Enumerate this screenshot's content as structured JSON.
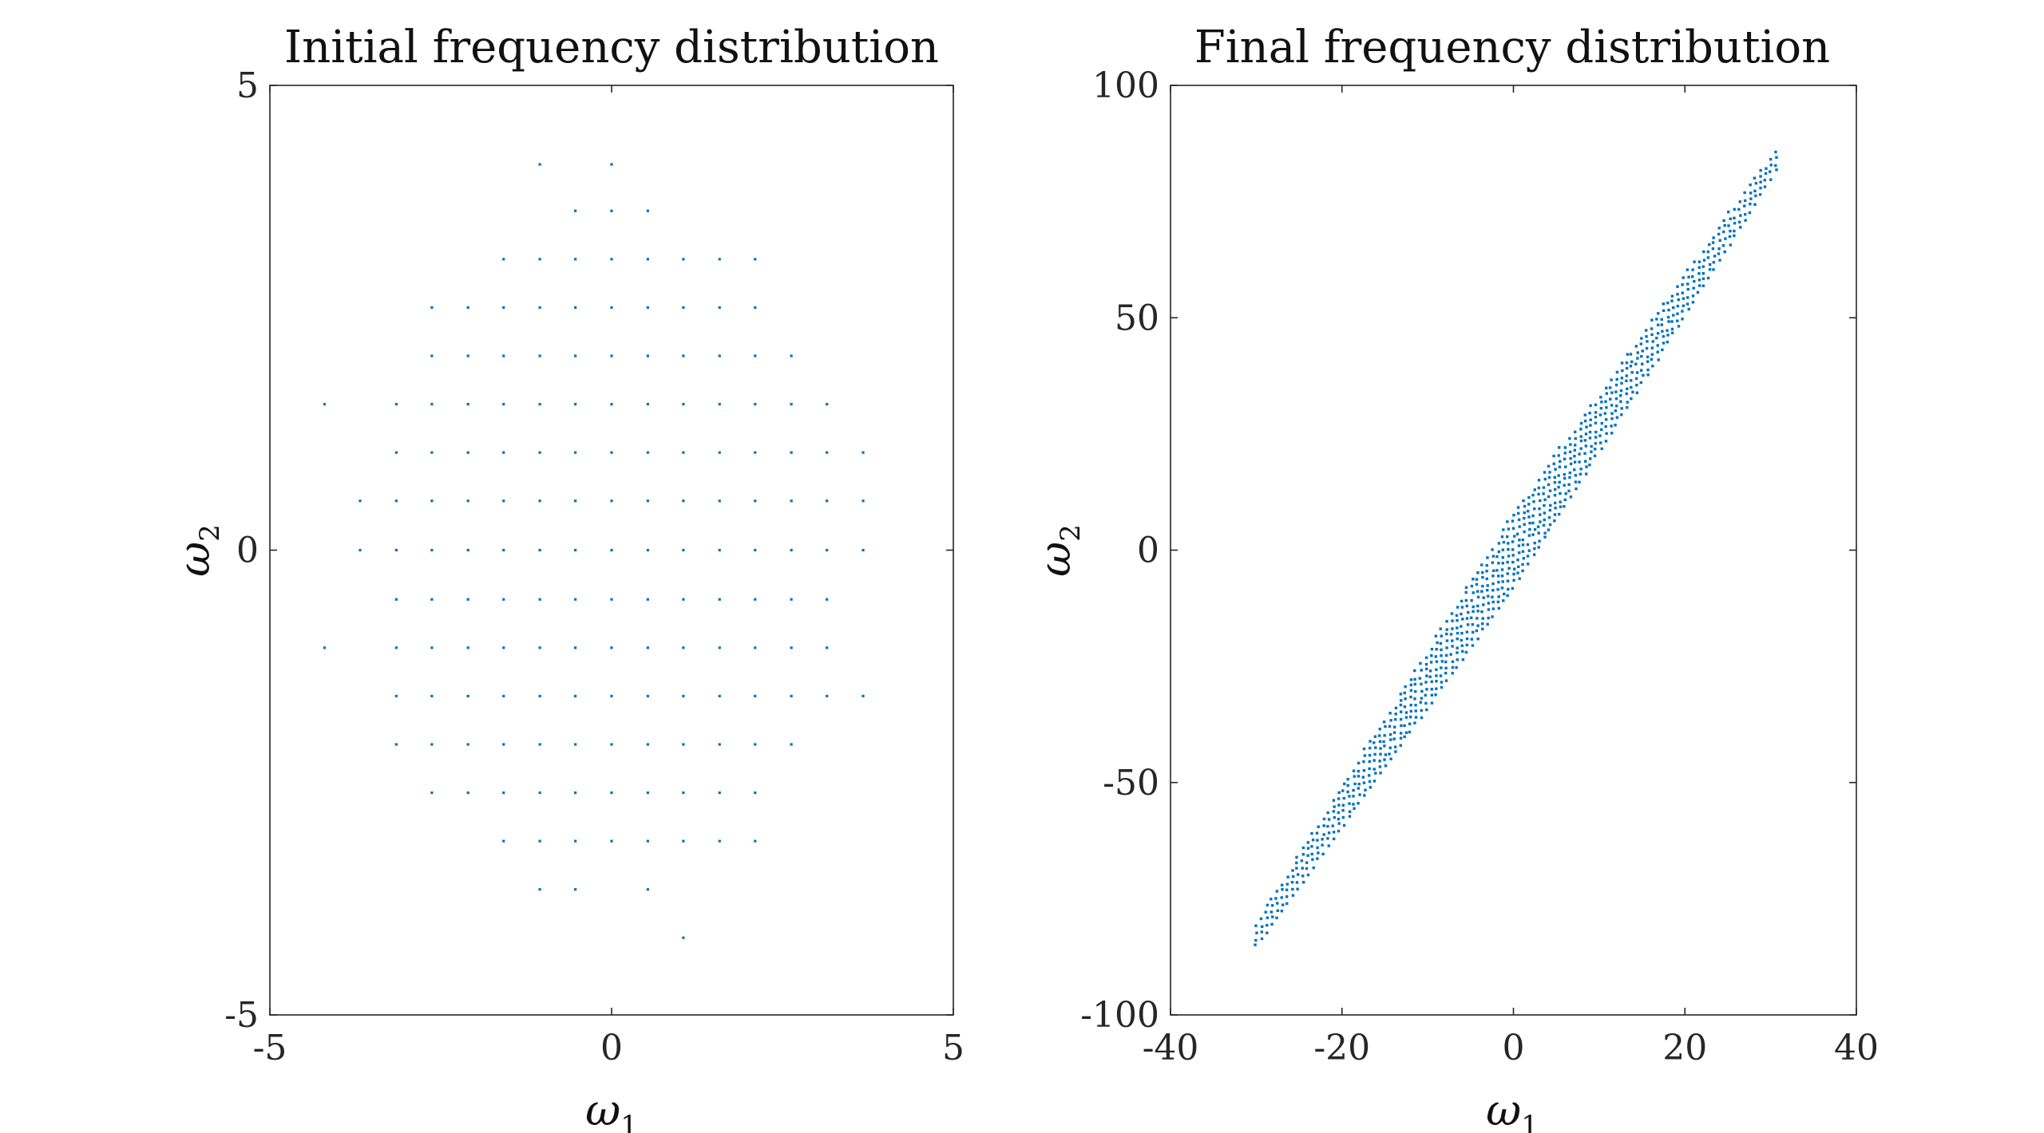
{
  "chart_data": [
    {
      "type": "scatter",
      "title": "Initial frequency distribution",
      "xlabel": "ω1",
      "xlabel_base": "ω",
      "xlabel_sub": "1",
      "ylabel": "ω2",
      "ylabel_base": "ω",
      "ylabel_sub": "2",
      "xlim": [
        -5,
        5
      ],
      "ylim": [
        -5,
        5
      ],
      "xticks": [
        -5,
        0,
        5
      ],
      "yticks": [
        -5,
        0,
        5
      ],
      "xtick_labels": [
        "-5",
        "0",
        "5"
      ],
      "ytick_labels": [
        "-5",
        "0",
        "5"
      ],
      "grid": false,
      "marker_color": "#0072bd",
      "series": [
        {
          "points": [
            [
              -1.05,
              4.15
            ],
            [
              0,
              4.15
            ],
            [
              -0.53,
              3.65
            ],
            [
              0,
              3.65
            ],
            [
              0.53,
              3.65
            ],
            [
              -1.58,
              3.13
            ],
            [
              -1.05,
              3.13
            ],
            [
              -0.53,
              3.13
            ],
            [
              0,
              3.13
            ],
            [
              0.53,
              3.13
            ],
            [
              1.05,
              3.13
            ],
            [
              1.58,
              3.13
            ],
            [
              2.1,
              3.13
            ],
            [
              -2.63,
              2.61
            ],
            [
              -2.1,
              2.61
            ],
            [
              -1.58,
              2.61
            ],
            [
              -1.05,
              2.61
            ],
            [
              -0.53,
              2.61
            ],
            [
              0,
              2.61
            ],
            [
              0.53,
              2.61
            ],
            [
              1.05,
              2.61
            ],
            [
              1.58,
              2.61
            ],
            [
              2.1,
              2.61
            ],
            [
              -2.63,
              2.09
            ],
            [
              -2.1,
              2.09
            ],
            [
              -1.58,
              2.09
            ],
            [
              -1.05,
              2.09
            ],
            [
              -0.53,
              2.09
            ],
            [
              0,
              2.09
            ],
            [
              0.53,
              2.09
            ],
            [
              1.05,
              2.09
            ],
            [
              1.58,
              2.09
            ],
            [
              2.1,
              2.09
            ],
            [
              2.63,
              2.09
            ],
            [
              -4.2,
              1.57
            ],
            [
              -3.15,
              1.57
            ],
            [
              -2.63,
              1.57
            ],
            [
              -2.1,
              1.57
            ],
            [
              -1.58,
              1.57
            ],
            [
              -1.05,
              1.57
            ],
            [
              -0.53,
              1.57
            ],
            [
              0,
              1.57
            ],
            [
              0.53,
              1.57
            ],
            [
              1.05,
              1.57
            ],
            [
              1.58,
              1.57
            ],
            [
              2.1,
              1.57
            ],
            [
              2.63,
              1.57
            ],
            [
              3.15,
              1.57
            ],
            [
              -3.15,
              1.05
            ],
            [
              -2.63,
              1.05
            ],
            [
              -2.1,
              1.05
            ],
            [
              -1.58,
              1.05
            ],
            [
              -1.05,
              1.05
            ],
            [
              -0.53,
              1.05
            ],
            [
              0,
              1.05
            ],
            [
              0.53,
              1.05
            ],
            [
              1.05,
              1.05
            ],
            [
              1.58,
              1.05
            ],
            [
              2.1,
              1.05
            ],
            [
              2.63,
              1.05
            ],
            [
              3.15,
              1.05
            ],
            [
              3.68,
              1.05
            ],
            [
              -3.68,
              0.53
            ],
            [
              -3.15,
              0.53
            ],
            [
              -2.63,
              0.53
            ],
            [
              -2.1,
              0.53
            ],
            [
              -1.58,
              0.53
            ],
            [
              -1.05,
              0.53
            ],
            [
              -0.53,
              0.53
            ],
            [
              0,
              0.53
            ],
            [
              0.53,
              0.53
            ],
            [
              1.05,
              0.53
            ],
            [
              1.58,
              0.53
            ],
            [
              2.1,
              0.53
            ],
            [
              2.63,
              0.53
            ],
            [
              3.15,
              0.53
            ],
            [
              3.68,
              0.53
            ],
            [
              -3.68,
              0
            ],
            [
              -3.15,
              0
            ],
            [
              -2.63,
              0
            ],
            [
              -2.1,
              0
            ],
            [
              -1.58,
              0
            ],
            [
              -1.05,
              0
            ],
            [
              -0.53,
              0
            ],
            [
              0,
              0
            ],
            [
              0.53,
              0
            ],
            [
              1.05,
              0
            ],
            [
              1.58,
              0
            ],
            [
              2.1,
              0
            ],
            [
              2.63,
              0
            ],
            [
              3.15,
              0
            ],
            [
              3.68,
              0
            ],
            [
              -3.15,
              -0.53
            ],
            [
              -2.63,
              -0.53
            ],
            [
              -2.1,
              -0.53
            ],
            [
              -1.58,
              -0.53
            ],
            [
              -1.05,
              -0.53
            ],
            [
              -0.53,
              -0.53
            ],
            [
              0,
              -0.53
            ],
            [
              0.53,
              -0.53
            ],
            [
              1.05,
              -0.53
            ],
            [
              1.58,
              -0.53
            ],
            [
              2.1,
              -0.53
            ],
            [
              2.63,
              -0.53
            ],
            [
              3.15,
              -0.53
            ],
            [
              -4.2,
              -1.05
            ],
            [
              -3.15,
              -1.05
            ],
            [
              -2.63,
              -1.05
            ],
            [
              -2.1,
              -1.05
            ],
            [
              -1.58,
              -1.05
            ],
            [
              -1.05,
              -1.05
            ],
            [
              -0.53,
              -1.05
            ],
            [
              0,
              -1.05
            ],
            [
              0.53,
              -1.05
            ],
            [
              1.05,
              -1.05
            ],
            [
              1.58,
              -1.05
            ],
            [
              2.1,
              -1.05
            ],
            [
              2.63,
              -1.05
            ],
            [
              3.15,
              -1.05
            ],
            [
              -3.15,
              -1.57
            ],
            [
              -2.63,
              -1.57
            ],
            [
              -2.1,
              -1.57
            ],
            [
              -1.58,
              -1.57
            ],
            [
              -1.05,
              -1.57
            ],
            [
              -0.53,
              -1.57
            ],
            [
              0,
              -1.57
            ],
            [
              0.53,
              -1.57
            ],
            [
              1.05,
              -1.57
            ],
            [
              1.58,
              -1.57
            ],
            [
              2.1,
              -1.57
            ],
            [
              2.63,
              -1.57
            ],
            [
              3.15,
              -1.57
            ],
            [
              3.68,
              -1.57
            ],
            [
              -3.15,
              -2.09
            ],
            [
              -2.63,
              -2.09
            ],
            [
              -2.1,
              -2.09
            ],
            [
              -1.58,
              -2.09
            ],
            [
              -1.05,
              -2.09
            ],
            [
              -0.53,
              -2.09
            ],
            [
              0,
              -2.09
            ],
            [
              0.53,
              -2.09
            ],
            [
              1.05,
              -2.09
            ],
            [
              1.58,
              -2.09
            ],
            [
              2.1,
              -2.09
            ],
            [
              2.63,
              -2.09
            ],
            [
              -2.63,
              -2.61
            ],
            [
              -2.1,
              -2.61
            ],
            [
              -1.58,
              -2.61
            ],
            [
              -1.05,
              -2.61
            ],
            [
              -0.53,
              -2.61
            ],
            [
              0,
              -2.61
            ],
            [
              0.53,
              -2.61
            ],
            [
              1.05,
              -2.61
            ],
            [
              1.58,
              -2.61
            ],
            [
              2.1,
              -2.61
            ],
            [
              -1.58,
              -3.13
            ],
            [
              -1.05,
              -3.13
            ],
            [
              -0.53,
              -3.13
            ],
            [
              0,
              -3.13
            ],
            [
              0.53,
              -3.13
            ],
            [
              1.05,
              -3.13
            ],
            [
              1.58,
              -3.13
            ],
            [
              2.1,
              -3.13
            ],
            [
              -1.05,
              -3.65
            ],
            [
              -0.53,
              -3.65
            ],
            [
              0.53,
              -3.65
            ],
            [
              1.05,
              -4.17
            ]
          ]
        }
      ]
    },
    {
      "type": "scatter",
      "title": "Final frequency distribution",
      "xlabel": "ω1",
      "xlabel_base": "ω",
      "xlabel_sub": "1",
      "ylabel": "ω2",
      "ylabel_base": "ω",
      "ylabel_sub": "2",
      "xlim": [
        -40,
        40
      ],
      "ylim": [
        -100,
        100
      ],
      "xticks": [
        -40,
        -20,
        0,
        20,
        40
      ],
      "yticks": [
        -100,
        -50,
        0,
        50,
        100
      ],
      "xtick_labels": [
        "-40",
        "-20",
        "0",
        "20",
        "40"
      ],
      "ytick_labels": [
        "-100",
        "-50",
        "0",
        "50",
        "100"
      ],
      "grid": false,
      "marker_color": "#0072bd",
      "band": {
        "description_free": true,
        "x_range": [
          -30,
          31
        ],
        "center_slope": 2.75,
        "center_intercept": 0,
        "half_width_y_at_center": 8,
        "half_width_y_at_ends": 2.5,
        "x_step": 0.6,
        "y_step": 1.4
      }
    }
  ]
}
